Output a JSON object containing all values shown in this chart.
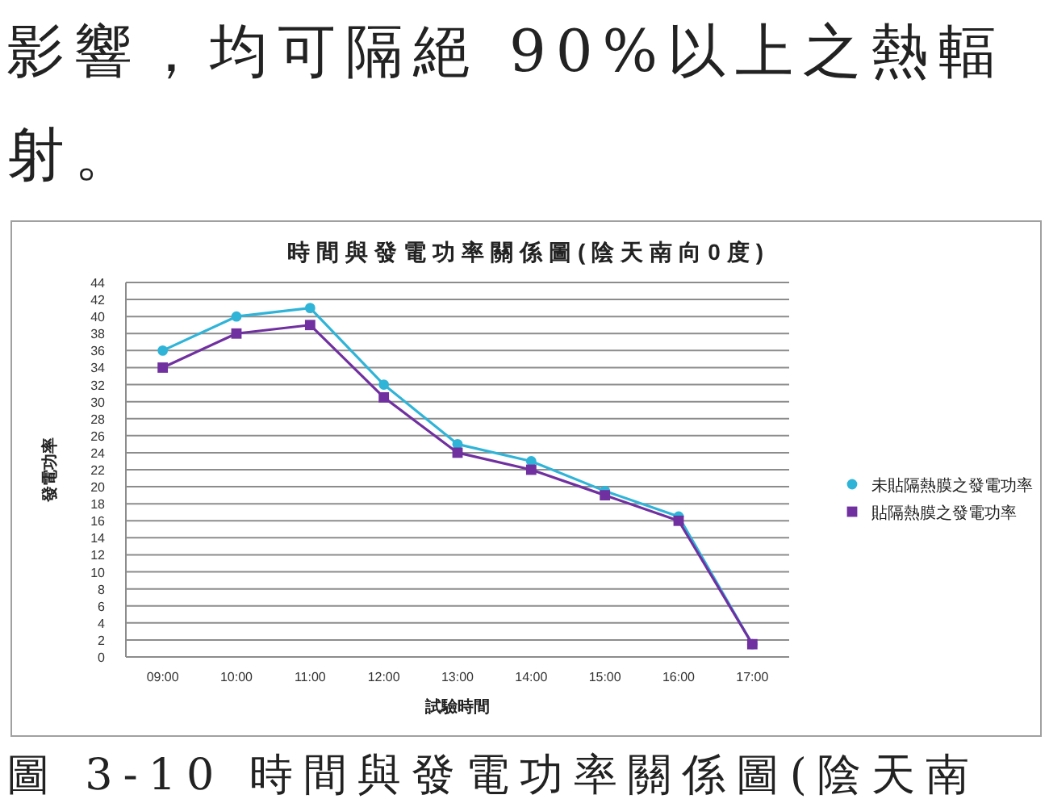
{
  "chart_data": {
    "type": "line",
    "title": "時間與發電功率關係圖(陰天南向0度)",
    "xlabel": "試驗時間",
    "ylabel": "發電功率",
    "categories": [
      "09:00",
      "10:00",
      "11:00",
      "12:00",
      "13:00",
      "14:00",
      "15:00",
      "16:00",
      "17:00"
    ],
    "series": [
      {
        "name": "未貼隔熱膜之發電功率",
        "color": "#2fb4d8",
        "marker": "circle",
        "values": [
          36,
          40,
          41,
          32,
          25,
          23,
          19.5,
          16.5,
          1.5
        ]
      },
      {
        "name": "貼隔熱膜之發電功率",
        "color": "#7030a0",
        "marker": "square",
        "values": [
          34,
          38,
          39,
          30.5,
          24,
          22,
          19,
          16,
          1.5
        ]
      }
    ],
    "ylim": [
      0,
      44
    ],
    "yticks": [
      0,
      2,
      4,
      6,
      8,
      10,
      12,
      14,
      16,
      18,
      20,
      22,
      24,
      26,
      28,
      30,
      32,
      34,
      36,
      38,
      40,
      42,
      44
    ],
    "grid": "y",
    "legend": "right",
    "line_style": "solid",
    "annotations": [
      "影響，均可隔絕 90%以上之熱輻",
      "射。",
      "圖 3-10 時間與發電功率關係圖(陰天南"
    ]
  }
}
